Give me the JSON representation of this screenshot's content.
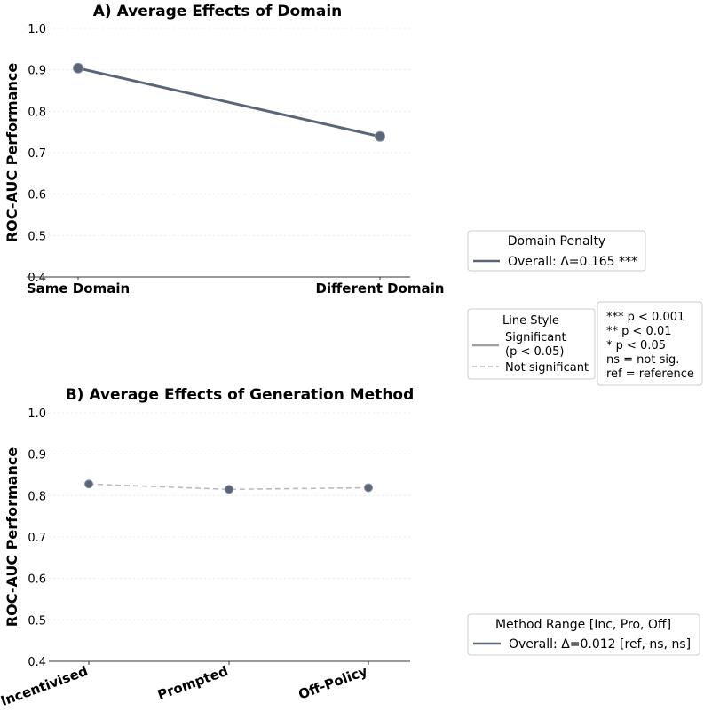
{
  "colors": {
    "line": "#5a6677",
    "marker": "#5a6677",
    "dashed": "#b8bcc2",
    "significant": "#9e9e9e",
    "grid": "#e6e6e6",
    "axis": "#333333",
    "legend_border": "#cccccc"
  },
  "chart_data": [
    {
      "type": "line",
      "title": "A) Average Effects of Domain",
      "ylabel": "ROC-AUC Performance",
      "xlabel": "",
      "categories": [
        "Same Domain",
        "Different Domain"
      ],
      "series": [
        {
          "name": "Overall",
          "values": [
            0.904,
            0.739
          ],
          "style": "solid"
        }
      ],
      "ylim": [
        0.4,
        1.0
      ],
      "yticks": [
        "0.4",
        "0.5",
        "0.6",
        "0.7",
        "0.8",
        "0.9",
        "1.0"
      ],
      "grid": true,
      "legend": {
        "title": "Domain Penalty",
        "entries": [
          "Overall: Δ=0.165 ***"
        ],
        "placement": "right"
      }
    },
    {
      "type": "line",
      "title": "B) Average Effects of Generation Method",
      "ylabel": "ROC-AUC Performance",
      "xlabel": "",
      "categories": [
        "Incentivised",
        "Prompted",
        "Off-Policy"
      ],
      "series": [
        {
          "name": "Overall",
          "values": [
            0.828,
            0.815,
            0.819
          ],
          "style": "dashed"
        }
      ],
      "ylim": [
        0.4,
        1.0
      ],
      "yticks": [
        "0.4",
        "0.5",
        "0.6",
        "0.7",
        "0.8",
        "0.9",
        "1.0"
      ],
      "grid": true,
      "legend": {
        "title": "Method Range [Inc, Pro, Off]",
        "entries": [
          "Overall: Δ=0.012 [ref, ns, ns]"
        ],
        "placement": "right"
      }
    }
  ],
  "line_style_legend": {
    "title": "Line Style",
    "significant_line1": "Significant",
    "significant_line2": "(p < 0.05)",
    "not_significant": "Not significant"
  },
  "significance_legend": {
    "lines": [
      "*** p < 0.001",
      "** p < 0.01",
      "* p < 0.05",
      "ns = not sig.",
      "ref = reference"
    ]
  }
}
